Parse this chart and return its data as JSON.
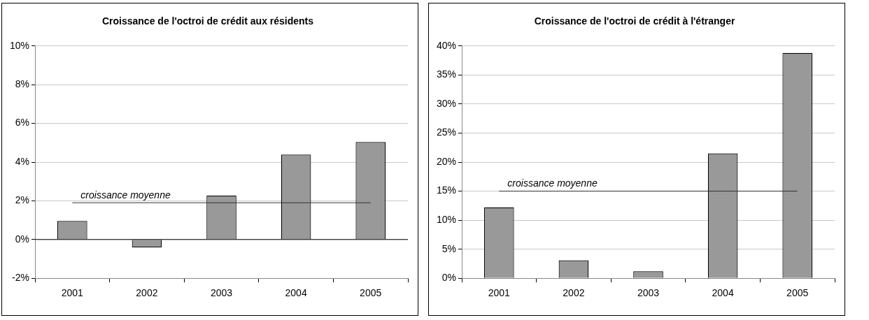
{
  "chart_data": [
    {
      "type": "bar",
      "title": "Croissance de l'octroi de crédit aux résidents",
      "categories": [
        "2001",
        "2002",
        "2003",
        "2004",
        "2005"
      ],
      "values": [
        0.96,
        -0.4,
        2.27,
        4.39,
        5.04
      ],
      "color": "#999999",
      "ylim": [
        -2,
        10
      ],
      "yticks": [
        {
          "value": -2,
          "label": "-2%"
        },
        {
          "value": 0,
          "label": "0%"
        },
        {
          "value": 2,
          "label": "2%"
        },
        {
          "value": 4,
          "label": "4%"
        },
        {
          "value": 6,
          "label": "6%"
        },
        {
          "value": 8,
          "label": "8%"
        },
        {
          "value": 10,
          "label": "10%"
        }
      ],
      "grid": "y",
      "legend": false,
      "ref_lines": [
        {
          "axis": "y",
          "value": 1.9,
          "label": "croissance moyenne",
          "color": "#333333"
        }
      ]
    },
    {
      "type": "bar",
      "title": "Croissance de l'octroi de crédit à l'étranger",
      "categories": [
        "2001",
        "2002",
        "2003",
        "2004",
        "2005"
      ],
      "values": [
        12.2,
        3.1,
        1.2,
        21.5,
        38.8
      ],
      "color": "#999999",
      "ylim": [
        0,
        40
      ],
      "yticks": [
        {
          "value": 0,
          "label": "0%"
        },
        {
          "value": 5,
          "label": "5%"
        },
        {
          "value": 10,
          "label": "10%"
        },
        {
          "value": 15,
          "label": "15%"
        },
        {
          "value": 20,
          "label": "20%"
        },
        {
          "value": 25,
          "label": "25%"
        },
        {
          "value": 30,
          "label": "30%"
        },
        {
          "value": 35,
          "label": "35%"
        },
        {
          "value": 40,
          "label": "40%"
        }
      ],
      "grid": "y",
      "legend": false,
      "ref_lines": [
        {
          "axis": "y",
          "value": 15,
          "label": "croissance moyenne",
          "color": "#333333"
        }
      ]
    }
  ]
}
